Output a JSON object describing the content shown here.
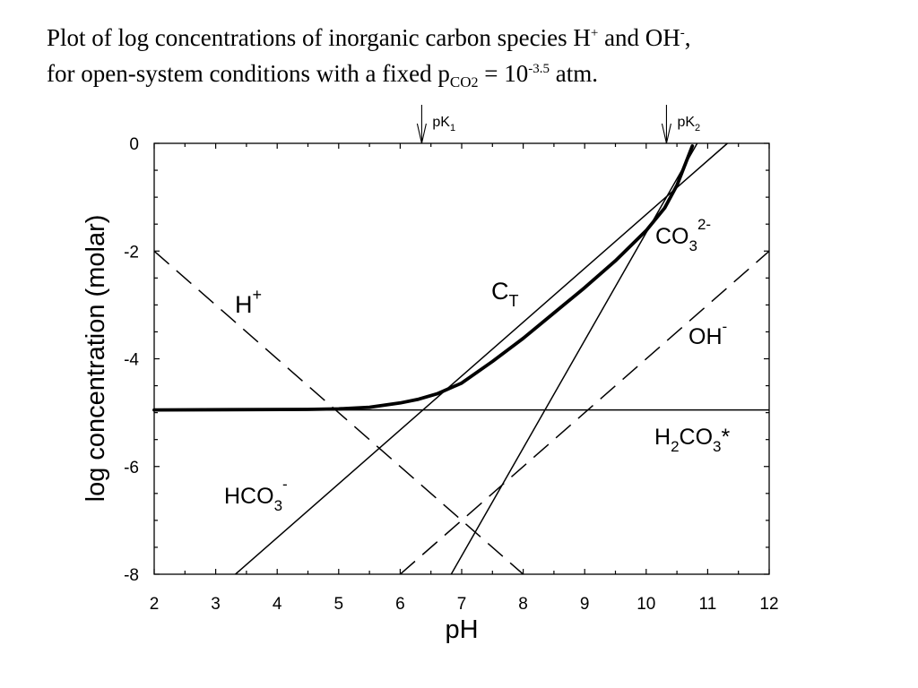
{
  "title": {
    "line1_text": "Plot of log concentrations of inorganic carbon species H",
    "line1_sup1": "+",
    "line1_mid": " and OH",
    "line1_sup2": "-",
    "line1_end": ",",
    "line2_text": "for open-system conditions with a fixed p",
    "line2_sub": "CO",
    "line2_subsub": "2",
    "line2_eq": " = 10",
    "line2_sup": "-3.5",
    "line2_end": " atm."
  },
  "chart_data": {
    "type": "line",
    "xlabel": "pH",
    "ylabel": "log concentration (molar)",
    "xlim": [
      2,
      12
    ],
    "ylim": [
      -8,
      0
    ],
    "xticks": [
      "2",
      "3",
      "4",
      "5",
      "6",
      "7",
      "8",
      "9",
      "10",
      "11",
      "12"
    ],
    "yticks": [
      "0",
      "-2",
      "-4",
      "-6",
      "-8"
    ],
    "grid": false,
    "pK_markers": [
      {
        "base": "pK",
        "sub": "1",
        "x": 6.35
      },
      {
        "base": "pK",
        "sub": "2",
        "x": 10.33
      }
    ],
    "series": [
      {
        "key": "H",
        "label_base": "H",
        "label_sub": "",
        "label_sup": "+",
        "label_suffix": "",
        "style": "dashed",
        "x": [
          2,
          8
        ],
        "y": [
          -2,
          -8
        ]
      },
      {
        "key": "OH",
        "label_base": "OH",
        "label_sub": "",
        "label_sup": "-",
        "label_suffix": "",
        "style": "dashed",
        "x": [
          6,
          12
        ],
        "y": [
          -8,
          -2
        ]
      },
      {
        "key": "H2CO3",
        "label_base": "H",
        "label_sub": "2",
        "label_base2": "CO",
        "label_sub2": "3",
        "label_suffix": "*",
        "style": "solid",
        "x": [
          2,
          12
        ],
        "y": [
          -4.95,
          -4.95
        ]
      },
      {
        "key": "HCO3",
        "label_base": "HCO",
        "label_sub": "3",
        "label_sup": "-",
        "label_suffix": "",
        "style": "solid",
        "x": [
          3.32,
          11.32
        ],
        "y": [
          -8,
          0
        ]
      },
      {
        "key": "CO3",
        "label_base": "CO",
        "label_sub": "3",
        "label_sup": "2-",
        "label_suffix": "",
        "style": "solid",
        "x": [
          6.83,
          10.83
        ],
        "y": [
          -8,
          0
        ]
      },
      {
        "key": "CT",
        "label_base": "C",
        "label_sub": "T",
        "label_sup": "",
        "label_suffix": "",
        "style": "bold",
        "x": [
          2,
          4.5,
          5,
          5.5,
          6,
          6.3,
          6.6,
          7,
          7.5,
          8,
          8.5,
          9,
          9.5,
          10,
          10.3,
          10.5,
          10.75
        ],
        "y": [
          -4.95,
          -4.94,
          -4.93,
          -4.9,
          -4.82,
          -4.75,
          -4.65,
          -4.45,
          -4.05,
          -3.62,
          -3.15,
          -2.68,
          -2.18,
          -1.62,
          -1.2,
          -0.78,
          -0.05
        ]
      }
    ]
  }
}
